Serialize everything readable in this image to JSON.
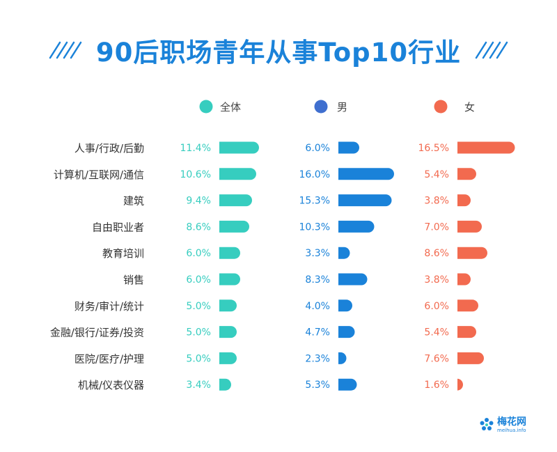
{
  "title": "90后职场青年从事Top10行业",
  "colors": {
    "title": "#1a82d9",
    "all": "#36cdbf",
    "male": "#1a82d9",
    "male_legend": "#3f6fcf",
    "female": "#f26a4f",
    "label": "#333333"
  },
  "logo": {
    "name": "梅花网",
    "url": "meihua.info"
  },
  "chart_data": {
    "type": "bar",
    "orientation": "horizontal",
    "categories": [
      "人事/行政/后勤",
      "计算机/互联网/通信",
      "建筑",
      "自由职业者",
      "教育培训",
      "销售",
      "财务/审计/统计",
      "金融/银行/证券/投资",
      "医院/医疗/护理",
      "机械/仪表仪器"
    ],
    "series": [
      {
        "name": "全体",
        "values": [
          11.4,
          10.6,
          9.4,
          8.6,
          6.0,
          6.0,
          5.0,
          5.0,
          5.0,
          3.4
        ],
        "labels": [
          "11.4%",
          "10.6%",
          "9.4%",
          "8.6%",
          "6.0%",
          "6.0%",
          "5.0%",
          "5.0%",
          "5.0%",
          "3.4%"
        ]
      },
      {
        "name": "男",
        "values": [
          6.0,
          16.0,
          15.3,
          10.3,
          3.3,
          8.3,
          4.0,
          4.7,
          2.3,
          5.3
        ],
        "labels": [
          "6.0%",
          "16.0%",
          "15.3%",
          "10.3%",
          "3.3%",
          "8.3%",
          "4.0%",
          "4.7%",
          "2.3%",
          "5.3%"
        ]
      },
      {
        "name": "女",
        "values": [
          16.5,
          5.4,
          3.8,
          7.0,
          8.6,
          3.8,
          6.0,
          5.4,
          7.6,
          1.6
        ],
        "labels": [
          "16.5%",
          "5.4%",
          "3.8%",
          "7.0%",
          "8.6%",
          "3.8%",
          "6.0%",
          "5.4%",
          "7.6%",
          "1.6%"
        ]
      }
    ],
    "legend_position": "top",
    "grid": false
  }
}
